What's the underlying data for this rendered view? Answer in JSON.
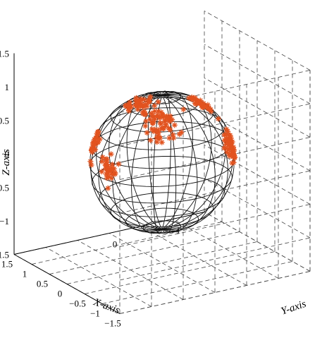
{
  "chart_data": {
    "type": "scatter",
    "subtype": "3d-scatter-with-wireframe-sphere",
    "xlabel": "X-axis",
    "ylabel": "Y-axis",
    "zlabel": "Z-axis",
    "xlim": [
      -1.5,
      1.5
    ],
    "ylim": [
      -1.5,
      1.5
    ],
    "zlim": [
      -1.5,
      1.5
    ],
    "x_ticks": [
      "1.5",
      "1",
      "0.5",
      "0",
      "−0.5",
      "−1",
      "−1.5"
    ],
    "y_ticks": [
      "0",
      "1"
    ],
    "z_ticks": [
      "1.5",
      "1",
      "0.5",
      "0",
      "−0.5",
      "−1",
      "−1.5"
    ],
    "grid": true,
    "sphere": {
      "radius": 1,
      "latitude_lines": 12,
      "longitude_lines": 20,
      "color": "#111111"
    },
    "marker": {
      "symbol": "asterisk",
      "color": "#e2531f"
    },
    "points_note_visible_count_approx": 300,
    "points_xyz": [
      [
        0.94,
        0.26,
        0.21
      ],
      [
        0.79,
        0.62,
        0.0
      ],
      [
        0.58,
        0.66,
        0.48
      ],
      [
        0.9,
        0.35,
        0.25
      ],
      [
        0.89,
        0.43,
        0.13
      ],
      [
        0.87,
        0.48,
        -0.06
      ],
      [
        0.89,
        0.46,
        0.0
      ],
      [
        0.9,
        0.42,
        0.09
      ],
      [
        0.85,
        0.43,
        0.32
      ],
      [
        0.76,
        0.62,
        0.2
      ],
      [
        0.9,
        0.42,
        -0.05
      ],
      [
        0.92,
        0.38,
        0.11
      ],
      [
        0.81,
        0.45,
        0.38
      ],
      [
        0.94,
        0.34,
        -0.02
      ],
      [
        0.89,
        0.23,
        0.4
      ],
      [
        0.86,
        0.45,
        0.24
      ],
      [
        0.83,
        0.52,
        0.19
      ],
      [
        0.73,
        0.68,
        0.06
      ],
      [
        0.82,
        0.56,
        0.15
      ],
      [
        0.82,
        0.47,
        0.33
      ],
      [
        0.9,
        0.44,
        0.04
      ],
      [
        0.8,
        0.51,
        0.33
      ],
      [
        0.87,
        0.33,
        0.37
      ],
      [
        0.91,
        0.42,
        0.01
      ],
      [
        0.9,
        0.35,
        0.26
      ],
      [
        0.9,
        0.36,
        0.24
      ],
      [
        0.89,
        0.45,
        0.01
      ],
      [
        0.87,
        0.47,
        0.15
      ],
      [
        0.76,
        0.55,
        0.35
      ],
      [
        0.83,
        0.52,
        0.21
      ],
      [
        0.9,
        0.31,
        0.31
      ],
      [
        0.92,
        0.26,
        0.29
      ],
      [
        0.95,
        0.29,
        0.1
      ],
      [
        0.84,
        0.39,
        0.37
      ],
      [
        0.8,
        0.43,
        0.42
      ],
      [
        0.82,
        0.34,
        0.45
      ],
      [
        0.91,
        0.39,
        0.14
      ],
      [
        0.88,
        0.37,
        0.3
      ],
      [
        0.89,
        0.44,
        0.09
      ],
      [
        0.76,
        0.58,
        0.29
      ],
      [
        0.71,
        0.7,
        0.09
      ],
      [
        0.81,
        0.58,
        0.12
      ],
      [
        0.9,
        0.44,
        0.01
      ],
      [
        0.85,
        0.5,
        0.15
      ],
      [
        0.87,
        0.36,
        0.34
      ],
      [
        0.77,
        0.55,
        0.32
      ],
      [
        0.86,
        0.46,
        0.22
      ],
      [
        0.86,
        0.31,
        0.41
      ],
      [
        0.78,
        0.51,
        0.35
      ],
      [
        0.79,
        0.61,
        0.05
      ],
      [
        0.83,
        0.5,
        0.26
      ],
      [
        0.84,
        0.41,
        0.35
      ],
      [
        0.86,
        0.49,
        0.15
      ],
      [
        0.92,
        0.35,
        0.15
      ],
      [
        0.81,
        0.46,
        0.37
      ],
      [
        0.79,
        0.56,
        0.26
      ],
      [
        0.81,
        0.5,
        0.29
      ],
      [
        0.81,
        0.39,
        0.44
      ],
      [
        0.79,
        0.54,
        0.28
      ],
      [
        0.82,
        0.57,
        0.0
      ],
      [
        -0.46,
        0.78,
        0.43
      ],
      [
        -0.63,
        0.7,
        0.35
      ],
      [
        -0.59,
        0.75,
        0.31
      ],
      [
        -0.62,
        0.64,
        0.46
      ],
      [
        -0.76,
        0.6,
        0.25
      ],
      [
        -0.63,
        0.73,
        0.27
      ],
      [
        -0.55,
        0.81,
        0.2
      ],
      [
        -0.47,
        0.8,
        0.37
      ],
      [
        -0.67,
        0.71,
        0.24
      ],
      [
        -0.49,
        0.86,
        0.15
      ],
      [
        -0.6,
        0.78,
        0.15
      ],
      [
        -0.69,
        0.72,
        0.04
      ],
      [
        -0.65,
        0.7,
        0.3
      ],
      [
        -0.68,
        0.61,
        0.4
      ],
      [
        -0.58,
        0.81,
        0.11
      ],
      [
        -0.61,
        0.74,
        0.29
      ],
      [
        -0.68,
        0.61,
        0.4
      ],
      [
        -0.74,
        0.59,
        0.31
      ],
      [
        -0.61,
        0.73,
        0.31
      ],
      [
        -0.51,
        0.84,
        0.2
      ],
      [
        -0.65,
        0.67,
        0.36
      ],
      [
        -0.44,
        0.77,
        0.46
      ],
      [
        -0.68,
        0.68,
        0.26
      ],
      [
        -0.54,
        0.78,
        0.32
      ],
      [
        -0.61,
        0.74,
        0.27
      ],
      [
        -0.41,
        0.88,
        0.24
      ],
      [
        -0.61,
        0.65,
        0.45
      ],
      [
        -0.54,
        0.84,
        0.05
      ],
      [
        -0.64,
        0.75,
        0.19
      ],
      [
        -0.59,
        0.8,
        0.13
      ],
      [
        -0.57,
        0.75,
        0.34
      ],
      [
        -0.61,
        0.75,
        0.26
      ],
      [
        -0.55,
        0.83,
        0.08
      ],
      [
        -0.73,
        0.66,
        0.17
      ],
      [
        -0.42,
        0.84,
        0.35
      ],
      [
        -0.61,
        0.75,
        0.24
      ],
      [
        -0.61,
        0.79,
        0.01
      ],
      [
        -0.71,
        0.61,
        0.35
      ],
      [
        -0.55,
        0.71,
        0.43
      ],
      [
        -0.62,
        0.68,
        0.39
      ],
      [
        -0.64,
        0.66,
        0.39
      ],
      [
        -0.64,
        0.76,
        0.11
      ],
      [
        -0.53,
        0.8,
        0.29
      ],
      [
        -0.56,
        0.82,
        0.16
      ],
      [
        -0.72,
        0.66,
        0.2
      ],
      [
        -0.6,
        0.73,
        0.33
      ],
      [
        -0.5,
        0.87,
        0.04
      ],
      [
        -0.76,
        0.56,
        0.32
      ],
      [
        -0.58,
        0.8,
        0.12
      ],
      [
        -0.41,
        0.86,
        0.3
      ],
      [
        -0.22,
        -0.42,
        0.88
      ],
      [
        -0.06,
        -0.25,
        0.97
      ],
      [
        0.06,
        -0.25,
        0.97
      ],
      [
        0.27,
        -0.36,
        0.89
      ],
      [
        0.05,
        -0.4,
        0.92
      ],
      [
        -0.2,
        -0.39,
        0.9
      ],
      [
        0.12,
        -0.3,
        0.95
      ],
      [
        -0.05,
        -0.34,
        0.94
      ],
      [
        0.04,
        -0.5,
        0.86
      ],
      [
        -0.16,
        -0.15,
        0.98
      ],
      [
        -0.1,
        -0.34,
        0.93
      ],
      [
        -0.0,
        -0.39,
        0.92
      ],
      [
        -0.06,
        -0.23,
        0.97
      ],
      [
        -0.08,
        -0.36,
        0.93
      ],
      [
        0.19,
        -0.42,
        0.89
      ],
      [
        -0.2,
        -0.23,
        0.95
      ],
      [
        0.03,
        -0.18,
        0.98
      ],
      [
        0.23,
        -0.44,
        0.87
      ],
      [
        -0.07,
        -0.3,
        0.95
      ],
      [
        0.28,
        -0.25,
        0.93
      ],
      [
        0.04,
        -0.32,
        0.95
      ],
      [
        0.1,
        -0.34,
        0.94
      ],
      [
        0.03,
        -0.38,
        0.92
      ],
      [
        -0.02,
        -0.22,
        0.97
      ],
      [
        0.09,
        -0.44,
        0.89
      ],
      [
        0.11,
        -0.47,
        0.87
      ],
      [
        0.13,
        -0.26,
        0.96
      ],
      [
        0.05,
        -0.37,
        0.93
      ],
      [
        0.11,
        -0.45,
        0.89
      ],
      [
        -0.19,
        -0.41,
        0.89
      ],
      [
        -0.25,
        -0.41,
        0.88
      ],
      [
        0.23,
        -0.45,
        0.87
      ],
      [
        0.06,
        -0.15,
        0.99
      ],
      [
        -0.03,
        -0.35,
        0.94
      ],
      [
        0.21,
        -0.3,
        0.93
      ],
      [
        0.17,
        -0.42,
        0.89
      ],
      [
        -0.05,
        -0.37,
        0.93
      ],
      [
        -0.13,
        -0.31,
        0.94
      ],
      [
        0.09,
        -0.33,
        0.94
      ],
      [
        -0.07,
        -0.42,
        0.9
      ],
      [
        -0.24,
        0.45,
        0.86
      ],
      [
        -0.07,
        0.43,
        0.9
      ],
      [
        -0.3,
        0.57,
        0.76
      ],
      [
        -0.19,
        0.44,
        0.88
      ],
      [
        -0.06,
        0.47,
        0.88
      ],
      [
        -0.13,
        0.41,
        0.9
      ],
      [
        -0.21,
        0.51,
        0.83
      ],
      [
        -0.29,
        0.46,
        0.84
      ],
      [
        -0.15,
        0.34,
        0.93
      ],
      [
        -0.21,
        0.47,
        0.86
      ],
      [
        -0.3,
        0.48,
        0.82
      ],
      [
        -0.3,
        0.37,
        0.88
      ],
      [
        -0.11,
        0.66,
        0.75
      ],
      [
        -0.18,
        0.46,
        0.87
      ],
      [
        -0.22,
        0.44,
        0.87
      ],
      [
        -0.28,
        0.61,
        0.74
      ],
      [
        -0.3,
        0.55,
        0.78
      ],
      [
        -0.15,
        0.53,
        0.83
      ],
      [
        -0.25,
        0.6,
        0.76
      ],
      [
        -0.29,
        0.36,
        0.89
      ],
      [
        -0.26,
        0.53,
        0.81
      ],
      [
        -0.09,
        0.45,
        0.89
      ],
      [
        -0.06,
        0.57,
        0.82
      ],
      [
        -0.23,
        0.47,
        0.85
      ],
      [
        -0.18,
        0.36,
        0.92
      ],
      [
        -0.31,
        0.48,
        0.82
      ],
      [
        -0.41,
        0.66,
        0.63
      ],
      [
        -0.35,
        0.44,
        0.83
      ],
      [
        -0.29,
        0.51,
        0.81
      ],
      [
        -0.26,
        0.51,
        0.82
      ],
      [
        -0.17,
        0.4,
        0.9
      ],
      [
        -0.17,
        0.56,
        0.81
      ],
      [
        -0.27,
        0.48,
        0.83
      ],
      [
        -0.06,
        0.49,
        0.87
      ],
      [
        -0.35,
        0.58,
        0.74
      ],
      [
        0.73,
        -0.63,
        0.27
      ],
      [
        0.83,
        -0.52,
        0.21
      ],
      [
        0.64,
        -0.76,
        -0.07
      ],
      [
        0.66,
        -0.66,
        0.37
      ],
      [
        0.73,
        -0.64,
        0.24
      ],
      [
        0.8,
        -0.57,
        0.18
      ],
      [
        0.58,
        -0.79,
        0.17
      ],
      [
        0.62,
        -0.67,
        0.41
      ],
      [
        0.71,
        -0.69,
        0.15
      ],
      [
        0.69,
        -0.72,
        0.1
      ],
      [
        0.7,
        -0.68,
        0.22
      ],
      [
        0.59,
        -0.76,
        0.28
      ],
      [
        0.65,
        -0.74,
        0.16
      ],
      [
        0.78,
        -0.62,
        0.09
      ],
      [
        0.72,
        -0.62,
        0.31
      ],
      [
        0.71,
        -0.62,
        0.34
      ],
      [
        0.68,
        -0.69,
        0.24
      ],
      [
        0.64,
        -0.73,
        0.24
      ],
      [
        0.68,
        -0.69,
        0.24
      ],
      [
        0.61,
        -0.79,
        -0.0
      ],
      [
        0.73,
        -0.68,
        0.12
      ],
      [
        0.66,
        -0.73,
        0.19
      ],
      [
        0.77,
        -0.62,
        0.17
      ],
      [
        0.64,
        -0.69,
        0.32
      ],
      [
        0.66,
        -0.74,
        0.16
      ],
      [
        0.63,
        -0.76,
        0.16
      ],
      [
        0.52,
        -0.78,
        0.35
      ],
      [
        0.81,
        -0.56,
        0.18
      ],
      [
        0.69,
        -0.68,
        0.24
      ],
      [
        0.53,
        -0.71,
        0.45
      ],
      [
        -0.37,
        -0.89,
        0.27
      ],
      [
        -0.07,
        -0.99,
        0.09
      ],
      [
        -0.19,
        -0.91,
        0.37
      ],
      [
        -0.12,
        -0.95,
        0.28
      ],
      [
        -0.29,
        -0.96,
        0.05
      ],
      [
        -0.27,
        -0.95,
        0.16
      ],
      [
        -0.27,
        -0.94,
        0.2
      ],
      [
        -0.17,
        -0.97,
        0.19
      ],
      [
        -0.21,
        -0.97,
        -0.12
      ],
      [
        -0.16,
        -0.96,
        0.22
      ],
      [
        -0.16,
        -0.98,
        0.16
      ],
      [
        -0.04,
        -0.96,
        0.29
      ],
      [
        -0.34,
        -0.93,
        0.12
      ],
      [
        -0.14,
        -0.97,
        0.2
      ],
      [
        -0.2,
        -0.97,
        0.15
      ],
      [
        -0.19,
        -0.96,
        0.2
      ],
      [
        -0.27,
        -0.95,
        0.16
      ],
      [
        -0.19,
        -0.96,
        0.2
      ],
      [
        -0.31,
        -0.93,
        0.19
      ],
      [
        -0.31,
        -0.94,
        0.11
      ],
      [
        -0.22,
        -0.96,
        0.15
      ],
      [
        -0.21,
        -0.97,
        0.11
      ],
      [
        -0.15,
        -0.95,
        0.29
      ],
      [
        -0.18,
        -0.98,
        0.08
      ],
      [
        -0.15,
        -0.97,
        0.21
      ],
      [
        -0.34,
        -0.93,
        0.14
      ],
      [
        -0.2,
        -0.97,
        0.14
      ],
      [
        -0.23,
        -0.96,
        0.16
      ],
      [
        -0.26,
        -0.93,
        0.24
      ],
      [
        -0.25,
        -0.95,
        0.18
      ],
      [
        -0.28,
        -0.95,
        0.11
      ],
      [
        -0.15,
        -0.96,
        0.25
      ],
      [
        -0.23,
        -0.97,
        0.06
      ],
      [
        -0.2,
        -0.98,
        0.03
      ],
      [
        -0.04,
        -0.97,
        0.23
      ]
    ]
  }
}
